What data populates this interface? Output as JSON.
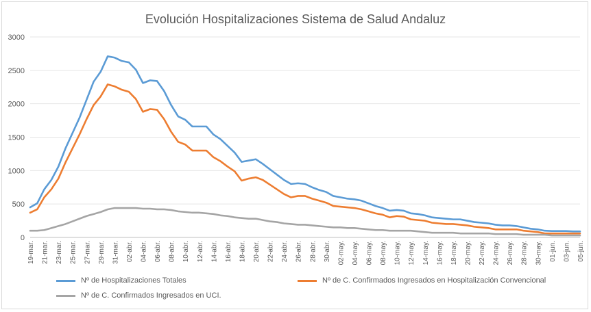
{
  "chart_data": {
    "type": "line",
    "title": "Evolución Hospitalizaciones Sistema de Salud Andaluz",
    "xlabel": "",
    "ylabel": "",
    "ylim": [
      0,
      3000
    ],
    "yticks": [
      0,
      500,
      1000,
      1500,
      2000,
      2500,
      3000
    ],
    "grid": true,
    "legend_position": "bottom",
    "x": [
      "19-mar.",
      "20-mar.",
      "21-mar.",
      "22-mar.",
      "23-mar.",
      "24-mar.",
      "25-mar.",
      "26-mar.",
      "27-mar.",
      "28-mar.",
      "29-mar.",
      "30-mar.",
      "31-mar.",
      "01-abr.",
      "02-abr.",
      "03-abr.",
      "04-abr.",
      "05-abr.",
      "06-abr.",
      "07-abr.",
      "08-abr.",
      "09-abr.",
      "10-abr.",
      "11-abr.",
      "12-abr.",
      "13-abr.",
      "14-abr.",
      "15-abr.",
      "16-abr.",
      "17-abr.",
      "18-abr.",
      "19-abr.",
      "20-abr.",
      "21-abr.",
      "22-abr.",
      "23-abr.",
      "24-abr.",
      "25-abr.",
      "26-abr.",
      "27-abr.",
      "28-abr.",
      "29-abr.",
      "30-abr.",
      "01-may.",
      "02-may.",
      "03-may.",
      "04-may.",
      "05-may.",
      "06-may.",
      "07-may.",
      "08-may.",
      "09-may.",
      "10-may.",
      "11-may.",
      "12-may.",
      "13-may.",
      "14-may.",
      "15-may.",
      "16-may.",
      "17-may.",
      "18-may.",
      "19-may.",
      "20-may.",
      "21-may.",
      "22-may.",
      "23-may.",
      "24-may.",
      "25-may.",
      "26-may.",
      "27-may.",
      "28-may.",
      "29-may.",
      "30-may.",
      "31-may.",
      "01-jun.",
      "02-jun.",
      "03-jun.",
      "04-jun.",
      "05-jun."
    ],
    "tick_labels": [
      "19-mar.",
      "21-mar.",
      "23-mar.",
      "25-mar.",
      "27-mar.",
      "29-mar.",
      "31-mar.",
      "02-abr.",
      "04-abr.",
      "06-abr.",
      "08-abr.",
      "10-abr.",
      "12-abr.",
      "14-abr.",
      "16-abr.",
      "18-abr.",
      "20-abr.",
      "22-abr.",
      "24-abr.",
      "26-abr.",
      "28-abr.",
      "30-abr.",
      "02-may.",
      "04-may.",
      "06-may.",
      "08-may.",
      "10-may.",
      "12-may.",
      "14-may.",
      "16-may.",
      "18-may.",
      "20-may.",
      "22-may.",
      "24-may.",
      "26-may.",
      "28-may.",
      "30-may.",
      "01-jun.",
      "03-jun.",
      "05-jun."
    ],
    "series": [
      {
        "name": "Nº de Hospitalizaciones Totales",
        "color": "#5b9bd5",
        "values": [
          450,
          510,
          720,
          860,
          1060,
          1330,
          1560,
          1790,
          2060,
          2330,
          2480,
          2710,
          2690,
          2640,
          2620,
          2510,
          2310,
          2350,
          2340,
          2190,
          1980,
          1810,
          1760,
          1660,
          1660,
          1660,
          1540,
          1470,
          1370,
          1270,
          1130,
          1150,
          1170,
          1100,
          1020,
          940,
          860,
          800,
          810,
          800,
          750,
          710,
          680,
          620,
          600,
          580,
          570,
          550,
          510,
          470,
          440,
          400,
          410,
          400,
          360,
          350,
          330,
          300,
          290,
          280,
          270,
          270,
          250,
          230,
          220,
          210,
          190,
          180,
          180,
          170,
          150,
          130,
          120,
          100,
          95,
          95,
          95,
          90,
          90
        ]
      },
      {
        "name": "Nº de C. Confirmados Ingresados en Hospitalización Convencional",
        "color": "#ed7d31",
        "values": [
          370,
          420,
          600,
          720,
          880,
          1120,
          1330,
          1540,
          1770,
          1980,
          2110,
          2290,
          2260,
          2210,
          2180,
          2070,
          1880,
          1920,
          1910,
          1770,
          1580,
          1430,
          1390,
          1300,
          1300,
          1300,
          1200,
          1140,
          1060,
          990,
          850,
          880,
          900,
          860,
          790,
          720,
          650,
          600,
          620,
          620,
          580,
          550,
          520,
          470,
          460,
          450,
          440,
          420,
          390,
          360,
          340,
          300,
          320,
          310,
          270,
          260,
          250,
          220,
          210,
          200,
          200,
          190,
          180,
          160,
          150,
          140,
          120,
          120,
          120,
          120,
          100,
          90,
          80,
          60,
          60,
          60,
          60,
          60,
          60
        ]
      },
      {
        "name": "Nº de C. Confirmados Ingresados en UCI.",
        "color": "#a5a5a5",
        "values": [
          100,
          100,
          110,
          140,
          170,
          200,
          240,
          280,
          320,
          350,
          380,
          420,
          440,
          440,
          440,
          440,
          430,
          430,
          420,
          420,
          410,
          390,
          380,
          370,
          370,
          360,
          350,
          330,
          320,
          300,
          290,
          280,
          280,
          260,
          240,
          230,
          210,
          200,
          190,
          190,
          180,
          170,
          160,
          150,
          150,
          140,
          140,
          130,
          120,
          110,
          110,
          100,
          100,
          100,
          100,
          90,
          80,
          70,
          70,
          70,
          70,
          60,
          60,
          60,
          60,
          60,
          50,
          50,
          50,
          50,
          40,
          40,
          40,
          40,
          30,
          30,
          30,
          30,
          30
        ]
      }
    ]
  }
}
